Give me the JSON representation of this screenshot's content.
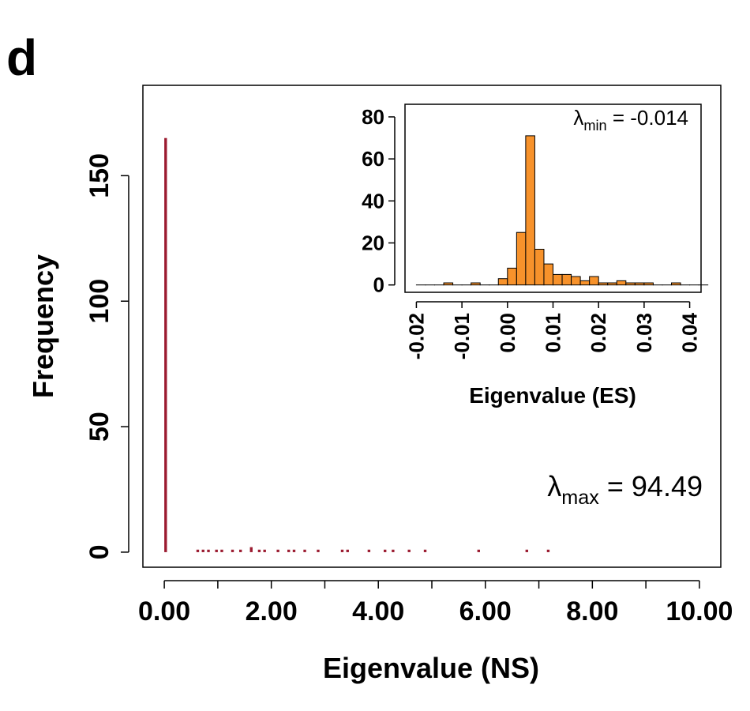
{
  "panel_label": "d",
  "colors": {
    "main_bars": "#9b1b30",
    "inset_bars": "#f7922b",
    "axis": "#000000"
  },
  "chart_data": [
    {
      "type": "bar",
      "role": "main-histogram",
      "xlabel": "Eigenvalue (NS)",
      "ylabel": "Frequency",
      "xlim": [
        -0.4,
        10.4
      ],
      "ylim": [
        -6,
        186
      ],
      "x_ticks": [
        0,
        1,
        2,
        3,
        4,
        5,
        6,
        7,
        8,
        9,
        10
      ],
      "x_tick_labels": [
        "0.00",
        "",
        "2.00",
        "",
        "4.00",
        "",
        "6.00",
        "",
        "8.00",
        "",
        "10.00"
      ],
      "y_ticks": [
        0,
        50,
        100,
        150
      ],
      "y_tick_labels": [
        "0",
        "50",
        "100",
        "150"
      ],
      "bin_width": 0.05,
      "bars": [
        {
          "x": 0.0,
          "y": 165
        },
        {
          "x": 0.6,
          "y": 1
        },
        {
          "x": 0.7,
          "y": 1
        },
        {
          "x": 0.8,
          "y": 1
        },
        {
          "x": 0.95,
          "y": 1
        },
        {
          "x": 1.05,
          "y": 1
        },
        {
          "x": 1.25,
          "y": 1
        },
        {
          "x": 1.4,
          "y": 1
        },
        {
          "x": 1.6,
          "y": 2
        },
        {
          "x": 1.75,
          "y": 1
        },
        {
          "x": 1.85,
          "y": 1
        },
        {
          "x": 2.1,
          "y": 1
        },
        {
          "x": 2.3,
          "y": 1
        },
        {
          "x": 2.4,
          "y": 1
        },
        {
          "x": 2.6,
          "y": 1
        },
        {
          "x": 2.85,
          "y": 1
        },
        {
          "x": 3.3,
          "y": 1
        },
        {
          "x": 3.4,
          "y": 1
        },
        {
          "x": 3.8,
          "y": 1
        },
        {
          "x": 4.1,
          "y": 1
        },
        {
          "x": 4.25,
          "y": 1
        },
        {
          "x": 4.55,
          "y": 1
        },
        {
          "x": 4.85,
          "y": 1
        },
        {
          "x": 5.85,
          "y": 1
        },
        {
          "x": 6.75,
          "y": 1
        },
        {
          "x": 7.15,
          "y": 1
        }
      ],
      "annotation": {
        "symbol": "λ",
        "subscript": "max",
        "text": " = 94.49"
      }
    },
    {
      "type": "bar",
      "role": "inset-histogram",
      "xlabel": "Eigenvalue (ES)",
      "ylabel": "",
      "xlim": [
        -0.0225,
        0.0425
      ],
      "ylim": [
        -3.5,
        86
      ],
      "x_ticks": [
        -0.02,
        -0.01,
        0.0,
        0.01,
        0.02,
        0.03,
        0.04
      ],
      "x_tick_labels": [
        "-0.02",
        "-0.01",
        "0.00",
        "0.01",
        "0.02",
        "0.03",
        "0.04"
      ],
      "y_ticks": [
        0,
        20,
        40,
        60,
        80
      ],
      "y_tick_labels": [
        "0",
        "20",
        "40",
        "60",
        "80"
      ],
      "bin_start": -0.02,
      "bin_width": 0.002,
      "counts": [
        0,
        0,
        0,
        1,
        0,
        0,
        1,
        0,
        0,
        3,
        8,
        25,
        71,
        17,
        10,
        5,
        5,
        4,
        2,
        4,
        1,
        1,
        2,
        1,
        1,
        1,
        0,
        0,
        1,
        0,
        0,
        0
      ],
      "annotation": {
        "symbol": "λ",
        "subscript": "min",
        "text": " = -0.014"
      }
    }
  ]
}
